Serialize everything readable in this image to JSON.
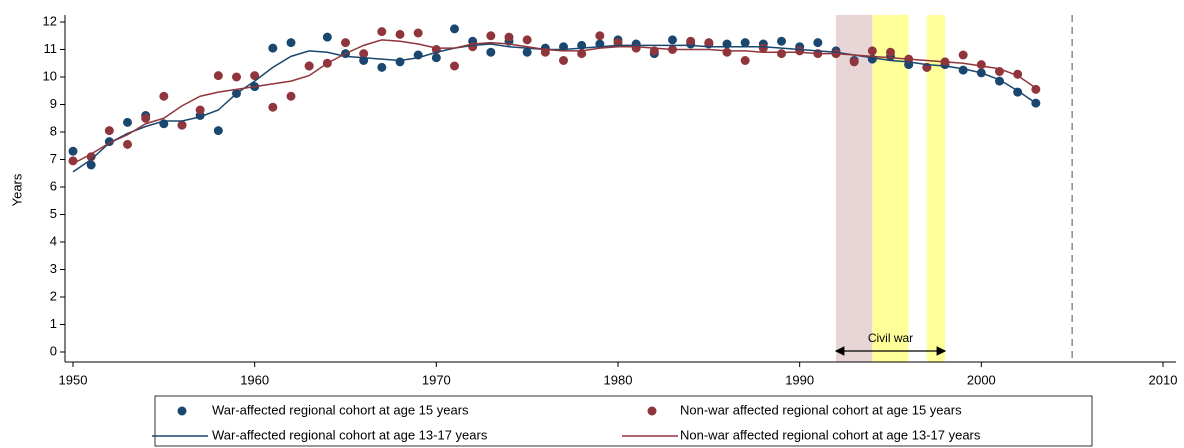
{
  "chart_data": {
    "type": "line",
    "y_label": "Years",
    "x": [
      1950,
      1951,
      1952,
      1953,
      1954,
      1955,
      1956,
      1957,
      1958,
      1959,
      1960,
      1961,
      1962,
      1963,
      1964,
      1965,
      1966,
      1967,
      1968,
      1969,
      1970,
      1971,
      1972,
      1973,
      1974,
      1975,
      1976,
      1977,
      1978,
      1979,
      1980,
      1981,
      1982,
      1983,
      1984,
      1985,
      1986,
      1987,
      1988,
      1989,
      1990,
      1991,
      1992,
      1993,
      1994,
      1995,
      1996,
      1997,
      1998,
      1999,
      2000,
      2001,
      2002,
      2003
    ],
    "series": [
      {
        "name": "War-affected regional cohort at age 15 years",
        "style": "scatter",
        "color": "#1a476f",
        "values": [
          7.3,
          6.8,
          7.65,
          8.35,
          8.6,
          8.3,
          8.25,
          8.6,
          8.05,
          9.4,
          9.65,
          11.05,
          11.25,
          10.4,
          11.45,
          10.85,
          10.6,
          10.35,
          10.55,
          10.8,
          10.7,
          11.75,
          11.3,
          10.9,
          11.3,
          10.9,
          11.05,
          11.1,
          11.15,
          11.2,
          11.35,
          11.2,
          10.85,
          11.35,
          11.2,
          11.2,
          11.2,
          11.25,
          11.2,
          11.3,
          11.1,
          11.25,
          10.95,
          10.6,
          10.65,
          10.75,
          10.45,
          10.35,
          10.45,
          10.25,
          10.15,
          9.85,
          9.45,
          9.05
        ]
      },
      {
        "name": "Non-war affected regional cohort at age 15 years",
        "style": "scatter",
        "color": "#90353b",
        "values": [
          6.95,
          7.1,
          8.05,
          7.55,
          8.5,
          9.3,
          8.25,
          8.8,
          10.05,
          10.0,
          10.05,
          8.9,
          9.3,
          10.4,
          10.5,
          11.25,
          10.85,
          11.65,
          11.55,
          11.6,
          11.0,
          10.4,
          11.1,
          11.5,
          11.45,
          11.35,
          10.9,
          10.6,
          10.85,
          11.5,
          11.25,
          11.05,
          10.95,
          11.0,
          11.3,
          11.25,
          10.9,
          10.6,
          11.05,
          10.85,
          10.95,
          10.85,
          10.85,
          10.55,
          10.95,
          10.9,
          10.65,
          10.35,
          10.55,
          10.8,
          10.45,
          10.2,
          10.1,
          9.55
        ]
      },
      {
        "name": "War-affected regional cohort at age 13-17 years",
        "style": "line",
        "color": "#1a476f",
        "values": [
          6.55,
          7.0,
          7.6,
          7.95,
          8.2,
          8.4,
          8.4,
          8.55,
          8.8,
          9.4,
          9.85,
          10.35,
          10.75,
          10.95,
          10.9,
          10.75,
          10.7,
          10.65,
          10.6,
          10.7,
          10.9,
          11.05,
          11.15,
          11.2,
          11.1,
          11.05,
          11.0,
          11.0,
          11.05,
          11.1,
          11.15,
          11.15,
          11.15,
          11.15,
          11.15,
          11.1,
          11.1,
          11.1,
          11.1,
          11.05,
          11.0,
          10.95,
          10.9,
          10.8,
          10.7,
          10.6,
          10.55,
          10.45,
          10.4,
          10.3,
          10.15,
          9.9,
          9.5,
          9.05
        ]
      },
      {
        "name": "Non-war affected regional cohort at age 13-17 years",
        "style": "line",
        "color": "#90353b",
        "values": [
          6.85,
          7.2,
          7.6,
          7.9,
          8.3,
          8.5,
          8.95,
          9.3,
          9.45,
          9.55,
          9.65,
          9.75,
          9.85,
          10.05,
          10.5,
          10.85,
          11.15,
          11.35,
          11.3,
          11.2,
          11.05,
          11.05,
          11.2,
          11.25,
          11.2,
          11.1,
          11.0,
          10.95,
          10.95,
          11.05,
          11.1,
          11.1,
          11.05,
          11.0,
          11.0,
          11.0,
          10.95,
          10.95,
          10.9,
          10.9,
          10.9,
          10.85,
          10.85,
          10.8,
          10.75,
          10.7,
          10.65,
          10.6,
          10.55,
          10.5,
          10.4,
          10.3,
          10.05,
          9.6
        ]
      }
    ],
    "xlim": [
      1950,
      2010
    ],
    "xticks": [
      1950,
      1960,
      1970,
      1980,
      1990,
      2000,
      2010
    ],
    "ylim": [
      0,
      12
    ],
    "yticks": [
      0,
      1,
      2,
      3,
      4,
      5,
      6,
      7,
      8,
      9,
      10,
      11,
      12
    ],
    "shaded_regions": [
      {
        "x": [
          1992,
          1994
        ],
        "color": "#e8d5d5"
      },
      {
        "x": [
          1994,
          1996
        ],
        "color": "#ffff99"
      },
      {
        "x": [
          1997,
          1998
        ],
        "color": "#ffff99"
      }
    ],
    "reference_line": {
      "x": 2005,
      "color": "#888888"
    },
    "annotation": {
      "text": "Civil war",
      "x": [
        1992,
        1998
      ]
    },
    "legend_position": "bottom"
  }
}
